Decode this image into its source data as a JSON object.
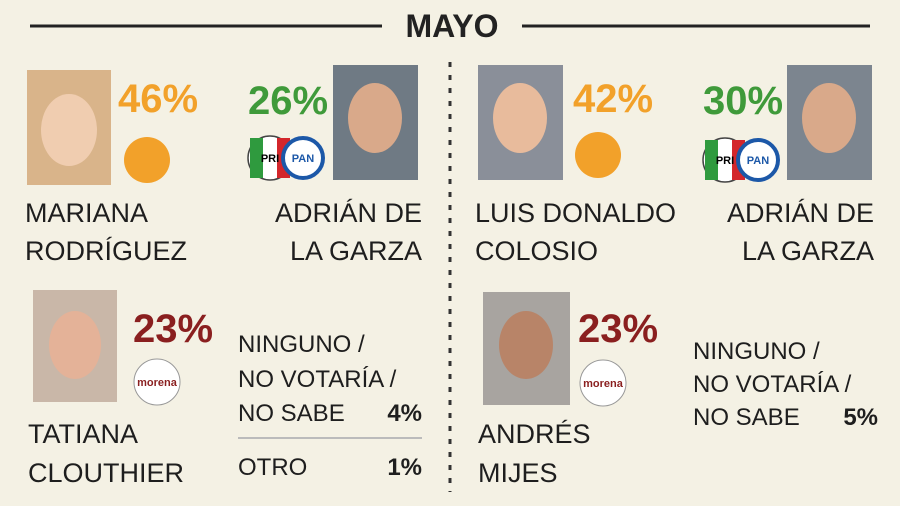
{
  "header": {
    "title": "MAYO"
  },
  "panels": [
    {
      "candidates": [
        {
          "lines": [
            "MARIANA",
            "RODRÍGUEZ"
          ],
          "percent": "46%"
        },
        {
          "lines": [
            "ADRIÁN DE",
            "LA GARZA"
          ],
          "percent": "26%",
          "logos": [
            "PRI",
            "PAN"
          ]
        },
        {
          "lines": [
            "TATIANA",
            "CLOUTHIER"
          ],
          "percent": "23%",
          "logos": [
            "morena"
          ]
        }
      ],
      "none": {
        "lines": [
          "NINGUNO /",
          "NO VOTARÍA /",
          "NO SABE"
        ],
        "percent": "4%"
      },
      "other": {
        "label": "OTRO",
        "percent": "1%"
      }
    },
    {
      "candidates": [
        {
          "lines": [
            "LUIS DONALDO",
            "COLOSIO"
          ],
          "percent": "42%"
        },
        {
          "lines": [
            "ADRIÁN DE",
            "LA GARZA"
          ],
          "percent": "30%",
          "logos": [
            "PRI",
            "PAN"
          ]
        },
        {
          "lines": [
            "ANDRÉS",
            "MIJES"
          ],
          "percent": "23%",
          "logos": [
            "morena"
          ]
        }
      ],
      "none": {
        "lines": [
          "NINGUNO /",
          "NO VOTARÍA /",
          "NO SABE"
        ],
        "percent": "5%"
      }
    }
  ]
}
